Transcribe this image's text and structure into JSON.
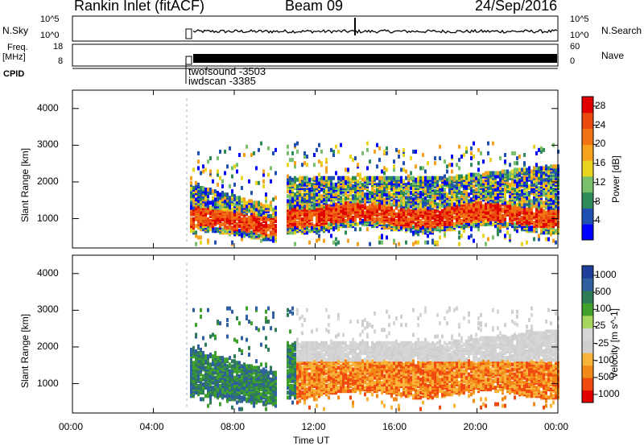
{
  "header": {
    "left_title": "Rankin Inlet (fitACF)",
    "center_title": "Beam 09",
    "date": "24/Sep/2016"
  },
  "top_panels": {
    "nsky_label": "N.Sky",
    "nsky_ticks": [
      "10^5",
      "10^0"
    ],
    "nsearch_label": "N.Search",
    "nsearch_ticks": [
      "10^5",
      "10^0"
    ],
    "freq_label": "Freq.",
    "freq_unit": "[MHz]",
    "freq_ticks": [
      "18",
      "8"
    ],
    "nave_label": "Nave",
    "nave_ticks": [
      "60",
      "0"
    ],
    "cpid_label": "CPID",
    "cpid_entries": [
      "twofsound -3503",
      "iwdscan -3385"
    ]
  },
  "colors": {
    "power_scale": [
      "#0000ff",
      "#1f4fb0",
      "#2e8a57",
      "#79c06c",
      "#e8d41f",
      "#f6a21e",
      "#f27313",
      "#ea4a0f",
      "#e00000"
    ],
    "velocity_scale": [
      "#e00000",
      "#f04a10",
      "#f28a1a",
      "#f7b33a",
      "#cfcfcf",
      "#d6d6d6",
      "#a7d65f",
      "#3fa02b",
      "#2e7d57",
      "#2f5f9e",
      "#1f3f9a"
    ]
  },
  "chart_data": [
    {
      "type": "heatmap",
      "title": "",
      "xlabel": "Time UT",
      "ylabel": "Slant Range [km]",
      "x_ticks": [
        "00:00",
        "04:00",
        "08:00",
        "12:00",
        "16:00",
        "20:00",
        "00:00"
      ],
      "y_ticks": [
        1000,
        2000,
        3000,
        4000
      ],
      "ylim": [
        200,
        4500
      ],
      "colorbar_label": "Power [dB]",
      "colorbar_ticks": [
        4,
        8,
        12,
        16,
        20,
        24,
        28
      ],
      "colorbar_range": [
        0,
        30
      ]
    },
    {
      "type": "heatmap",
      "title": "",
      "xlabel": "Time UT",
      "ylabel": "Slant Range [km]",
      "x_ticks": [
        "00:00",
        "04:00",
        "08:00",
        "12:00",
        "16:00",
        "20:00",
        "00:00"
      ],
      "y_ticks": [
        1000,
        2000,
        3000,
        4000
      ],
      "ylim": [
        200,
        4500
      ],
      "colorbar_label": "Velocity [m s^-1]",
      "colorbar_ticks": [
        "1000",
        "500",
        "100",
        "25",
        "-25",
        "-100",
        "-500",
        "-1000"
      ]
    }
  ]
}
